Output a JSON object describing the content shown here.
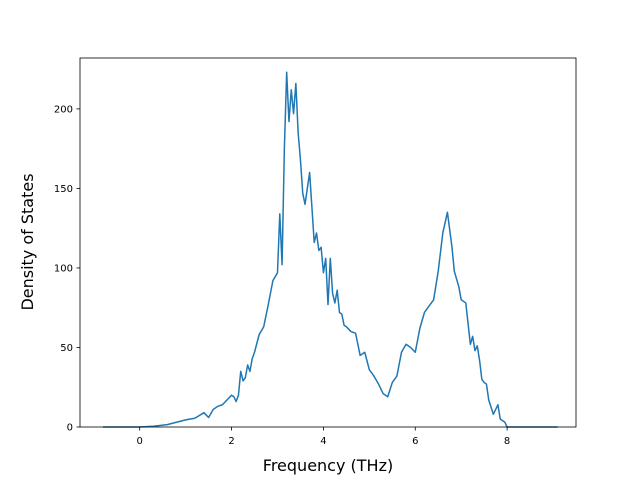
{
  "chart_data": {
    "type": "line",
    "title": "",
    "xlabel": "Frequency (THz)",
    "ylabel": "Density of States",
    "xlim": [
      -1.3,
      9.5
    ],
    "ylim": [
      0,
      232
    ],
    "xticks": [
      0,
      2,
      4,
      6,
      8
    ],
    "yticks": [
      0,
      50,
      100,
      150,
      200
    ],
    "grid": false,
    "legend": "none",
    "series": [
      {
        "color": "#1f77b4",
        "x": [
          -0.8,
          0.0,
          0.3,
          0.6,
          0.8,
          1.0,
          1.2,
          1.4,
          1.5,
          1.6,
          1.7,
          1.8,
          1.9,
          2.0,
          2.05,
          2.1,
          2.15,
          2.2,
          2.25,
          2.3,
          2.35,
          2.4,
          2.45,
          2.5,
          2.6,
          2.7,
          2.8,
          2.9,
          3.0,
          3.05,
          3.1,
          3.15,
          3.2,
          3.25,
          3.3,
          3.35,
          3.4,
          3.45,
          3.5,
          3.55,
          3.6,
          3.7,
          3.8,
          3.85,
          3.9,
          3.95,
          4.0,
          4.05,
          4.1,
          4.15,
          4.2,
          4.25,
          4.3,
          4.35,
          4.4,
          4.45,
          4.5,
          4.6,
          4.7,
          4.8,
          4.9,
          5.0,
          5.1,
          5.2,
          5.3,
          5.4,
          5.5,
          5.6,
          5.7,
          5.8,
          5.9,
          6.0,
          6.1,
          6.2,
          6.3,
          6.4,
          6.5,
          6.6,
          6.7,
          6.8,
          6.85,
          6.9,
          6.95,
          7.0,
          7.1,
          7.2,
          7.25,
          7.3,
          7.35,
          7.4,
          7.45,
          7.5,
          7.55,
          7.6,
          7.7,
          7.8,
          7.85,
          7.9,
          7.95,
          8.0,
          8.1,
          8.2,
          8.3,
          9.1
        ],
        "y": [
          0,
          0,
          0.5,
          1.5,
          3,
          4.5,
          5.5,
          9,
          6,
          11,
          13,
          14,
          17,
          20,
          19,
          16,
          20,
          35,
          29,
          31,
          39,
          35,
          43,
          47,
          58,
          63,
          77,
          92,
          97,
          134,
          102,
          175,
          223,
          192,
          212,
          197,
          216,
          185,
          168,
          147,
          140,
          160,
          116,
          122,
          111,
          113,
          97,
          106,
          77,
          106,
          84,
          78,
          86,
          72,
          71,
          64,
          63,
          60,
          59,
          45,
          47,
          36,
          32,
          27,
          21,
          19,
          28,
          32,
          47,
          52,
          50,
          47,
          62,
          72,
          76,
          80,
          98,
          122,
          135,
          113,
          98,
          93,
          88,
          80,
          78,
          52,
          57,
          48,
          51,
          42,
          30,
          28,
          27,
          17,
          8,
          14,
          5,
          4,
          3,
          0,
          0,
          0,
          0,
          0
        ]
      }
    ]
  }
}
